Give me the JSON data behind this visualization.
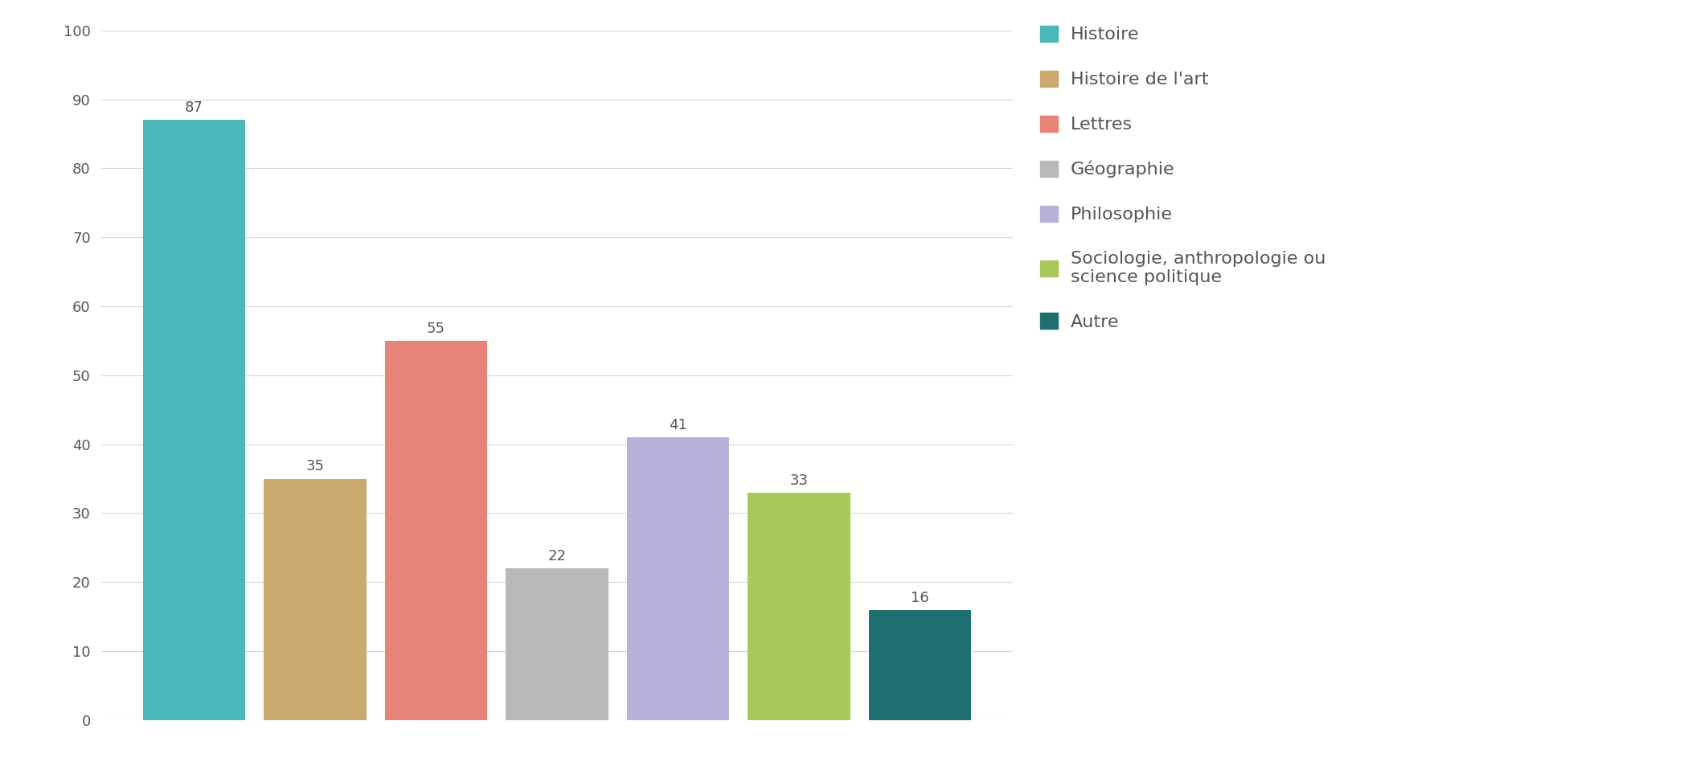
{
  "categories": [
    "Histoire",
    "Histoire de l'art",
    "Lettres",
    "Géographie",
    "Philosophie",
    "Sociologie, anthropologie ou\nscience politique",
    "Autre"
  ],
  "values": [
    87,
    35,
    55,
    22,
    41,
    33,
    16
  ],
  "bar_colors": [
    "#4ab8b8",
    "#c9a96e",
    "#e8837a",
    "#b8b8b8",
    "#b8b0d8",
    "#a8c85a",
    "#1e7070"
  ],
  "legend_labels": [
    "Histoire",
    "Histoire de l'art",
    "Lettres",
    "Géographie",
    "Philosophie",
    "Sociologie, anthropologie ou\nscience politique",
    "Autre"
  ],
  "ylim": [
    0,
    100
  ],
  "yticks": [
    0,
    10,
    20,
    30,
    40,
    50,
    60,
    70,
    80,
    90,
    100
  ],
  "value_label_fontsize": 13,
  "axis_label_fontsize": 13,
  "legend_fontsize": 16,
  "background_color": "#ffffff",
  "grid_color": "#d8d8d8"
}
